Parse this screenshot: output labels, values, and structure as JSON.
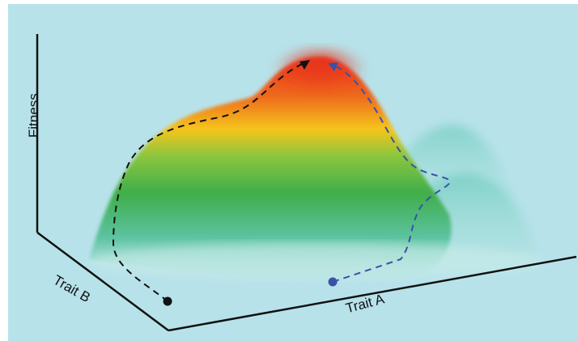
{
  "axes": {
    "y_label": "Fitness",
    "x_label": "Trait A",
    "z_label": "Trait B"
  },
  "paths": [
    {
      "name": "black-path",
      "color": "#111111",
      "start_marker": "dot",
      "end_marker": "arrow"
    },
    {
      "name": "blue-path",
      "color": "#3b52a6",
      "start_marker": "dot",
      "end_marker": "arrow"
    }
  ],
  "colors": {
    "background": "#b7e2ea",
    "peak": "#e8341c",
    "mid": "#f2c316",
    "slope": "#4bb548",
    "base": "#6fcfc4"
  }
}
